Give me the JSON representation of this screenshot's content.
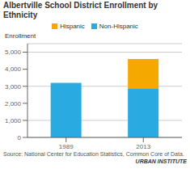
{
  "chart_data": {
    "type": "bar",
    "title": "Albertville School District Enrollment by Ethnicity",
    "ylabel": "Enrollment",
    "categories": [
      "1989",
      "2013"
    ],
    "series": [
      {
        "name": "Non-Hispanic",
        "color": "#29ABE2",
        "values": [
          3200,
          2880
        ]
      },
      {
        "name": "Hispanic",
        "color": "#F5A800",
        "values": [
          0,
          1720
        ]
      }
    ],
    "stacked": true,
    "ylim": [
      0,
      5500
    ],
    "yticks": [
      0,
      {
        "value": 1000,
        "label": "1,000"
      },
      {
        "value": 2000,
        "label": "2,000"
      },
      {
        "value": 3000,
        "label": "3,000"
      },
      {
        "value": 4000,
        "label": "4,000"
      },
      {
        "value": 5000,
        "label": "5,000"
      }
    ],
    "grid": true,
    "legend": "top",
    "annotations": [
      "Source: National Center for Education Statistics, Common Core of Data.",
      "URBAN INSTITUTE"
    ]
  }
}
